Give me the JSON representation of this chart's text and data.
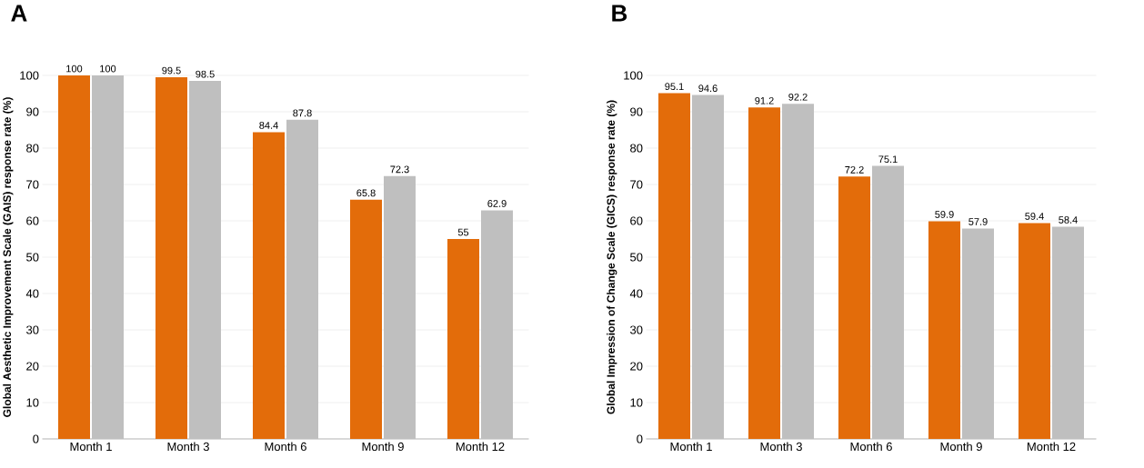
{
  "chart_data": [
    {
      "type": "bar",
      "title": "A",
      "ylabel": "Global Aesthetic Improvement Scale (GAIS) response rate (%)",
      "categories": [
        "Month 1",
        "Month 3",
        "Month 6",
        "Month 9",
        "Month 12"
      ],
      "series": [
        {
          "color": "#e36c0a",
          "values": [
            100,
            99.5,
            84.4,
            65.8,
            55
          ]
        },
        {
          "color": "#bfbfbf",
          "values": [
            100,
            98.5,
            87.8,
            72.3,
            62.9
          ]
        }
      ],
      "ylim": [
        0,
        100
      ],
      "yticks": [
        0,
        10,
        20,
        30,
        40,
        50,
        60,
        70,
        80,
        90,
        100
      ],
      "grid": "y",
      "data_labels": true
    },
    {
      "type": "bar",
      "title": "B",
      "ylabel": "Global Impression of Change Scale (GICS) response rate (%)",
      "categories": [
        "Month 1",
        "Month 3",
        "Month 6",
        "Month 9",
        "Month 12"
      ],
      "series": [
        {
          "color": "#e36c0a",
          "values": [
            95.1,
            91.2,
            72.2,
            59.9,
            59.4
          ]
        },
        {
          "color": "#bfbfbf",
          "values": [
            94.6,
            92.2,
            75.1,
            57.9,
            58.4
          ]
        }
      ],
      "ylim": [
        0,
        100
      ],
      "yticks": [
        0,
        10,
        20,
        30,
        40,
        50,
        60,
        70,
        80,
        90,
        100
      ],
      "grid": "y",
      "data_labels": true
    }
  ]
}
